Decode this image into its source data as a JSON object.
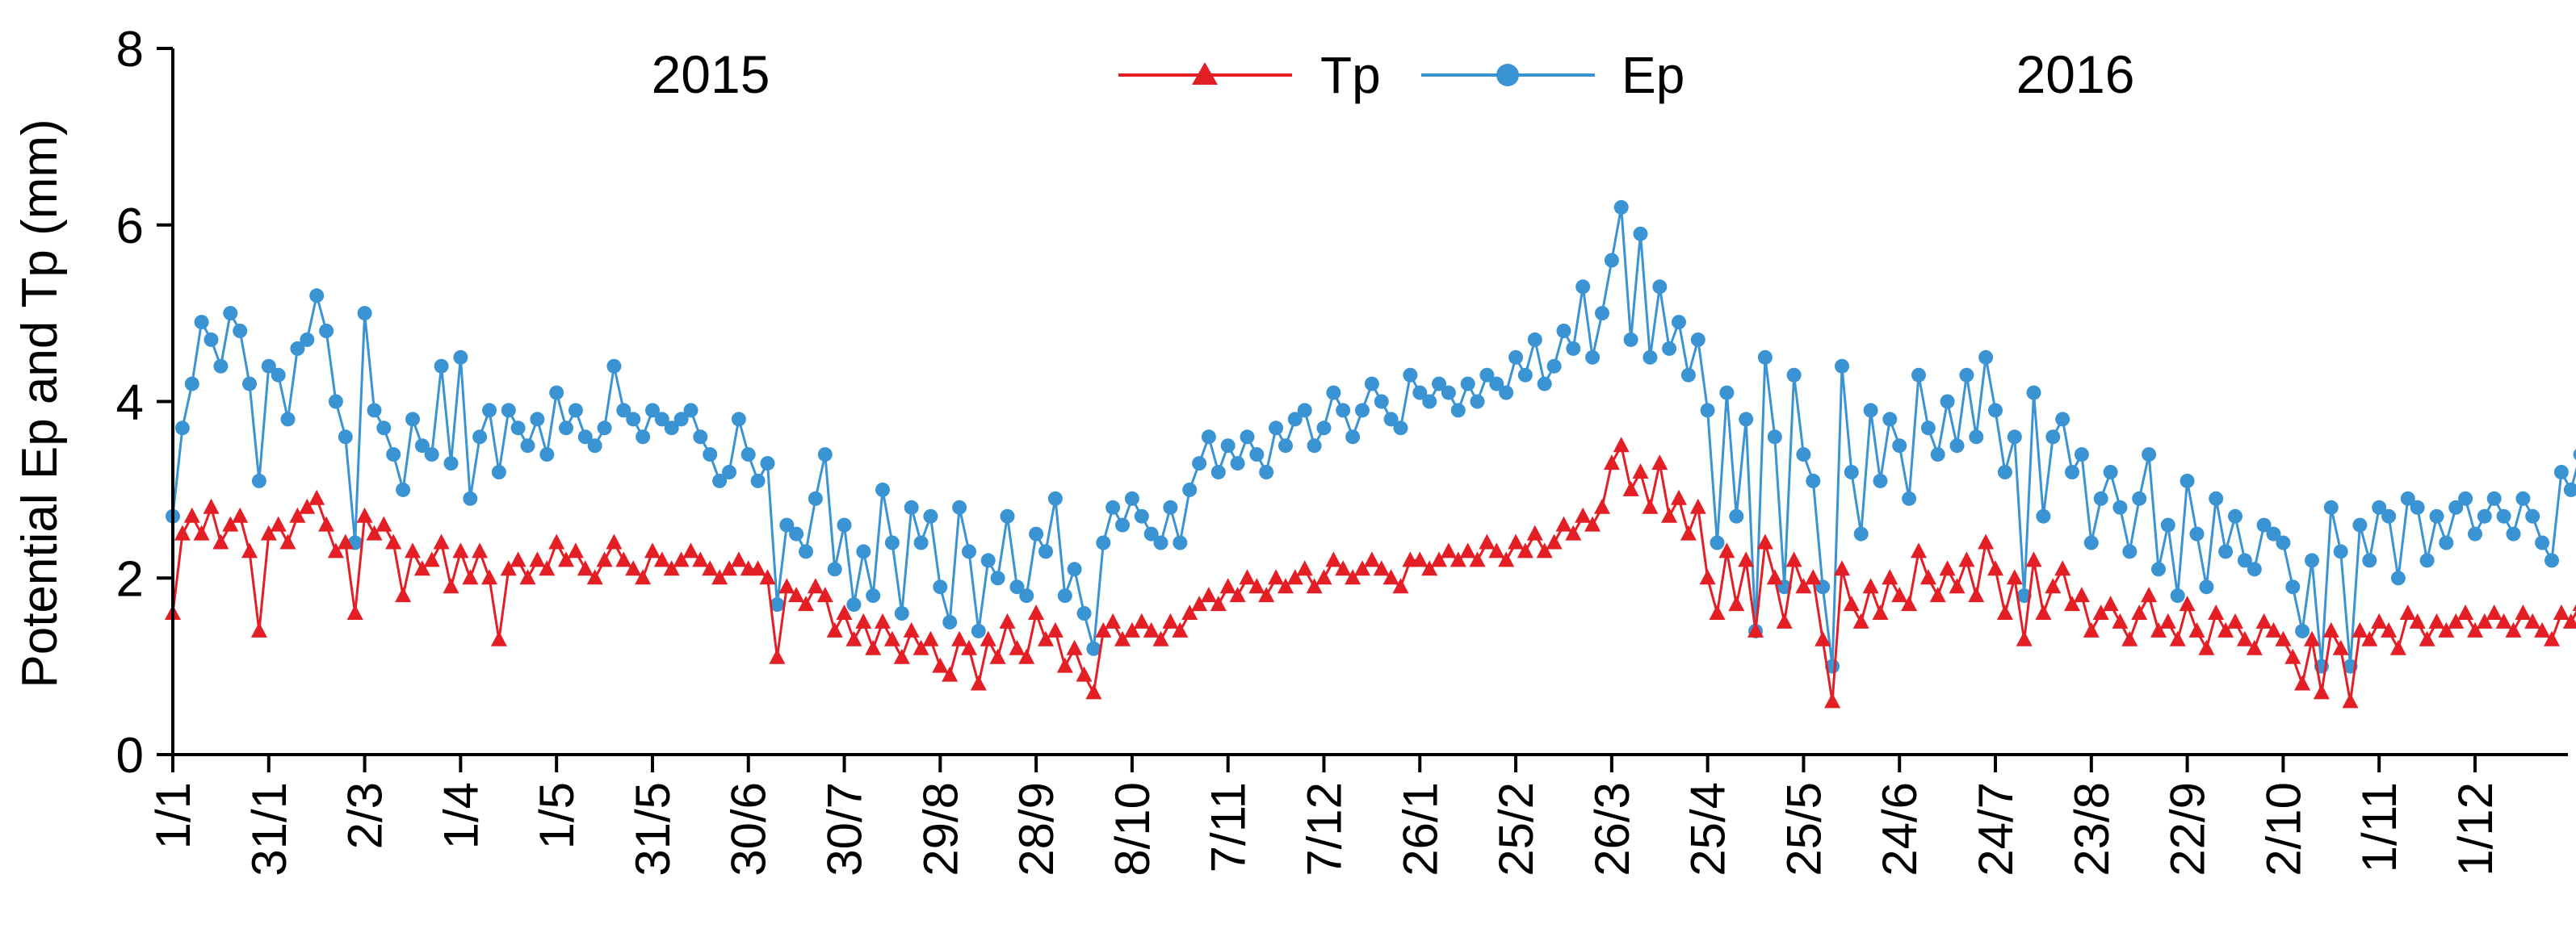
{
  "chart_data": {
    "type": "line",
    "title": "",
    "ylabel": "Potential Ep and Tp (mm)",
    "xlabel": "",
    "ylim": [
      0,
      8
    ],
    "yticks": [
      0,
      2,
      4,
      6,
      8
    ],
    "grid": false,
    "legend_position": "top-center",
    "year_labels": [
      "2015",
      "2016"
    ],
    "x_tick_labels": [
      "1/1",
      "31/1",
      "2/3",
      "1/4",
      "1/5",
      "31/5",
      "30/6",
      "30/7",
      "29/8",
      "28/9",
      "8/10",
      "7/11",
      "7/12",
      "26/1",
      "25/2",
      "26/3",
      "25/4",
      "25/5",
      "24/6",
      "24/7",
      "23/8",
      "22/9",
      "2/10",
      "1/11",
      "1/12"
    ],
    "x_tick_day_index": [
      0,
      30,
      60,
      90,
      120,
      150,
      180,
      210,
      240,
      270,
      300,
      330,
      360,
      390,
      420,
      450,
      480,
      510,
      540,
      570,
      600,
      630,
      660,
      690,
      720
    ],
    "x_range_days": [
      0,
      744
    ],
    "sample_day_interval": 3,
    "series": [
      {
        "name": "Tp",
        "color": "#e31e24",
        "marker": "triangle",
        "values": [
          1.6,
          2.5,
          2.7,
          2.5,
          2.8,
          2.4,
          2.6,
          2.7,
          2.3,
          1.4,
          2.5,
          2.6,
          2.4,
          2.7,
          2.8,
          2.9,
          2.6,
          2.3,
          2.4,
          1.6,
          2.7,
          2.5,
          2.6,
          2.4,
          1.8,
          2.3,
          2.1,
          2.2,
          2.4,
          1.9,
          2.3,
          2.0,
          2.3,
          2.0,
          1.3,
          2.1,
          2.2,
          2.0,
          2.2,
          2.1,
          2.4,
          2.2,
          2.3,
          2.1,
          2.0,
          2.2,
          2.4,
          2.2,
          2.1,
          2.0,
          2.3,
          2.2,
          2.1,
          2.2,
          2.3,
          2.2,
          2.1,
          2.0,
          2.1,
          2.2,
          2.1,
          2.1,
          2.0,
          1.1,
          1.9,
          1.8,
          1.7,
          1.9,
          1.8,
          1.4,
          1.6,
          1.3,
          1.5,
          1.2,
          1.5,
          1.3,
          1.1,
          1.4,
          1.2,
          1.3,
          1.0,
          0.9,
          1.3,
          1.2,
          0.8,
          1.3,
          1.1,
          1.5,
          1.2,
          1.1,
          1.6,
          1.3,
          1.4,
          1.0,
          1.2,
          0.9,
          0.7,
          1.4,
          1.5,
          1.3,
          1.4,
          1.5,
          1.4,
          1.3,
          1.5,
          1.4,
          1.6,
          1.7,
          1.8,
          1.7,
          1.9,
          1.8,
          2.0,
          1.9,
          1.8,
          2.0,
          1.9,
          2.0,
          2.1,
          1.9,
          2.0,
          2.2,
          2.1,
          2.0,
          2.1,
          2.2,
          2.1,
          2.0,
          1.9,
          2.2,
          2.2,
          2.1,
          2.2,
          2.3,
          2.2,
          2.3,
          2.2,
          2.4,
          2.3,
          2.2,
          2.4,
          2.3,
          2.5,
          2.3,
          2.4,
          2.6,
          2.5,
          2.7,
          2.6,
          2.8,
          3.3,
          3.5,
          3.0,
          3.2,
          2.8,
          3.3,
          2.7,
          2.9,
          2.5,
          2.8,
          2.0,
          1.6,
          2.3,
          1.7,
          2.2,
          1.4,
          2.4,
          2.0,
          1.5,
          2.2,
          1.9,
          2.0,
          1.3,
          0.6,
          2.1,
          1.7,
          1.5,
          1.9,
          1.6,
          2.0,
          1.8,
          1.7,
          2.3,
          2.0,
          1.8,
          2.1,
          1.9,
          2.2,
          1.8,
          2.4,
          2.1,
          1.6,
          2.0,
          1.3,
          2.2,
          1.6,
          1.9,
          2.1,
          1.7,
          1.8,
          1.4,
          1.6,
          1.7,
          1.5,
          1.3,
          1.6,
          1.8,
          1.4,
          1.5,
          1.3,
          1.7,
          1.4,
          1.2,
          1.6,
          1.4,
          1.5,
          1.3,
          1.2,
          1.5,
          1.4,
          1.3,
          1.1,
          0.8,
          1.3,
          0.7,
          1.4,
          1.2,
          0.6,
          1.4,
          1.3,
          1.5,
          1.4,
          1.2,
          1.6,
          1.5,
          1.3,
          1.5,
          1.4,
          1.5,
          1.6,
          1.4,
          1.5,
          1.6,
          1.5,
          1.4,
          1.6,
          1.5,
          1.4,
          1.3,
          1.6,
          1.5,
          1.7,
          1.6,
          1.8,
          1.7,
          1.6,
          1.8,
          1.9,
          1.7,
          1.9,
          1.8,
          2.0,
          1.9,
          2.1,
          2.0,
          1.9,
          2.0,
          2.1,
          1.2,
          2.0,
          1.9,
          2.1,
          1.3,
          1.8,
          2.1,
          2.2,
          2.3,
          2.1,
          2.2,
          2.4,
          2.2,
          2.3,
          2.4,
          2.3,
          2.5,
          2.4,
          2.6,
          2.5,
          2.7,
          2.4,
          2.3,
          2.5,
          2.4,
          2.6,
          2.5,
          2.4,
          2.7,
          2.5,
          2.6,
          2.8,
          2.6,
          2.5,
          2.7,
          2.6,
          2.8,
          2.7,
          2.9,
          2.8,
          2.7,
          2.0,
          2.3,
          2.4
        ]
      },
      {
        "name": "Ep",
        "color": "#3a93d2",
        "marker": "circle",
        "values": [
          2.7,
          3.7,
          4.2,
          4.9,
          4.7,
          4.4,
          5.0,
          4.8,
          4.2,
          3.1,
          4.4,
          4.3,
          3.8,
          4.6,
          4.7,
          5.2,
          4.8,
          4.0,
          3.6,
          2.4,
          5.0,
          3.9,
          3.7,
          3.4,
          3.0,
          3.8,
          3.5,
          3.4,
          4.4,
          3.3,
          4.5,
          2.9,
          3.6,
          3.9,
          3.2,
          3.9,
          3.7,
          3.5,
          3.8,
          3.4,
          4.1,
          3.7,
          3.9,
          3.6,
          3.5,
          3.7,
          4.4,
          3.9,
          3.8,
          3.6,
          3.9,
          3.8,
          3.7,
          3.8,
          3.9,
          3.6,
          3.4,
          3.1,
          3.2,
          3.8,
          3.4,
          3.1,
          3.3,
          1.7,
          2.6,
          2.5,
          2.3,
          2.9,
          3.4,
          2.1,
          2.6,
          1.7,
          2.3,
          1.8,
          3.0,
          2.4,
          1.6,
          2.8,
          2.4,
          2.7,
          1.9,
          1.5,
          2.8,
          2.3,
          1.4,
          2.2,
          2.0,
          2.7,
          1.9,
          1.8,
          2.5,
          2.3,
          2.9,
          1.8,
          2.1,
          1.6,
          1.2,
          2.4,
          2.8,
          2.6,
          2.9,
          2.7,
          2.5,
          2.4,
          2.8,
          2.4,
          3.0,
          3.3,
          3.6,
          3.2,
          3.5,
          3.3,
          3.6,
          3.4,
          3.2,
          3.7,
          3.5,
          3.8,
          3.9,
          3.5,
          3.7,
          4.1,
          3.9,
          3.6,
          3.9,
          4.2,
          4.0,
          3.8,
          3.7,
          4.3,
          4.1,
          4.0,
          4.2,
          4.1,
          3.9,
          4.2,
          4.0,
          4.3,
          4.2,
          4.1,
          4.5,
          4.3,
          4.7,
          4.2,
          4.4,
          4.8,
          4.6,
          5.3,
          4.5,
          5.0,
          5.6,
          6.2,
          4.7,
          5.9,
          4.5,
          5.3,
          4.6,
          4.9,
          4.3,
          4.7,
          3.9,
          2.4,
          4.1,
          2.7,
          3.8,
          1.4,
          4.5,
          3.6,
          1.9,
          4.3,
          3.4,
          3.1,
          1.9,
          1.0,
          4.4,
          3.2,
          2.5,
          3.9,
          3.1,
          3.8,
          3.5,
          2.9,
          4.3,
          3.7,
          3.4,
          4.0,
          3.5,
          4.3,
          3.6,
          4.5,
          3.9,
          3.2,
          3.6,
          1.8,
          4.1,
          2.7,
          3.6,
          3.8,
          3.2,
          3.4,
          2.4,
          2.9,
          3.2,
          2.8,
          2.3,
          2.9,
          3.4,
          2.1,
          2.6,
          1.8,
          3.1,
          2.5,
          1.9,
          2.9,
          2.3,
          2.7,
          2.2,
          2.1,
          2.6,
          2.5,
          2.4,
          1.9,
          1.4,
          2.2,
          1.0,
          2.8,
          2.3,
          1.0,
          2.6,
          2.2,
          2.8,
          2.7,
          2.0,
          2.9,
          2.8,
          2.2,
          2.7,
          2.4,
          2.8,
          2.9,
          2.5,
          2.7,
          2.9,
          2.7,
          2.5,
          2.9,
          2.7,
          2.4,
          2.2,
          3.2,
          3.0,
          3.4,
          3.2,
          3.6,
          3.5,
          3.3,
          3.7,
          3.8,
          3.5,
          3.8,
          3.6,
          3.9,
          3.7,
          4.0,
          3.6,
          3.4,
          3.2,
          3.9,
          2.5,
          3.7,
          3.4,
          4.4,
          3.6,
          1.8,
          3.8,
          3.7,
          3.9,
          3.4,
          3.6,
          4.1,
          3.7,
          3.9,
          4.0,
          3.8,
          4.2,
          4.0,
          4.4,
          4.1,
          4.6,
          4.0,
          3.6,
          4.3,
          4.1,
          4.5,
          4.3,
          4.0,
          4.6,
          4.2,
          4.4,
          4.8,
          4.3,
          4.1,
          4.6,
          4.3,
          4.9,
          4.5,
          5.1,
          4.7,
          4.4,
          2.6,
          4.2,
          4.4
        ]
      }
    ]
  }
}
